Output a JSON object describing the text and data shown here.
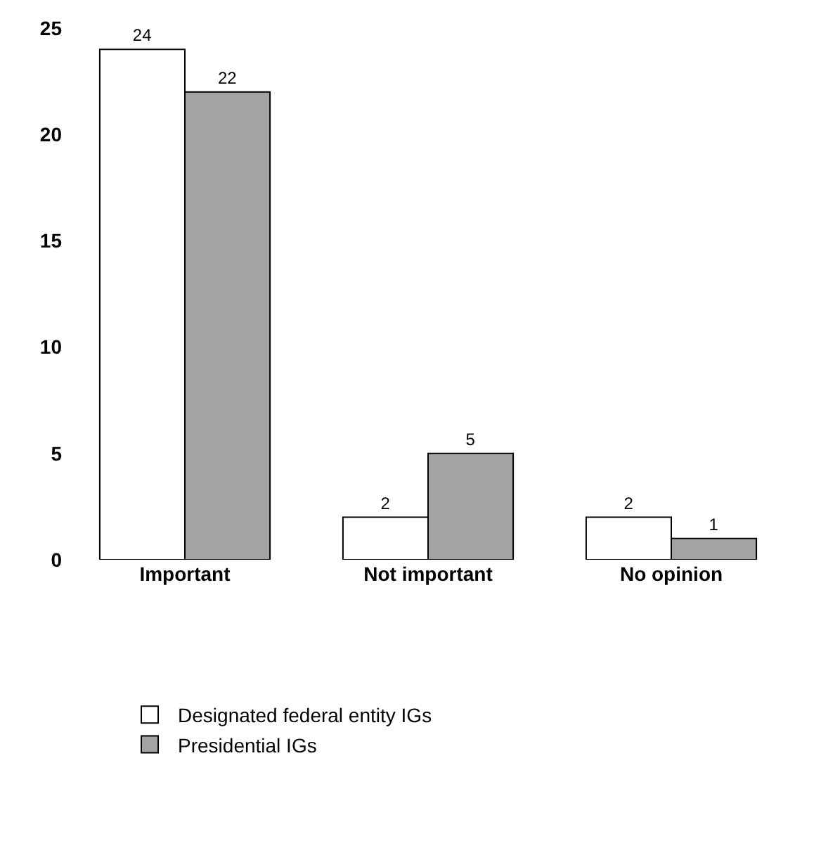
{
  "chart_data": {
    "type": "bar",
    "categories": [
      "Important",
      "Not important",
      "No opinion"
    ],
    "series": [
      {
        "name": "Designated federal entity IGs",
        "color": "#ffffff",
        "values": [
          24,
          2,
          2
        ]
      },
      {
        "name": "Presidential IGs",
        "color": "#a3a3a3",
        "values": [
          22,
          5,
          1
        ]
      }
    ],
    "ylim": [
      0,
      25
    ],
    "yticks": [
      0,
      5,
      10,
      15,
      20,
      25
    ],
    "legend": "bottom",
    "data_labels": true
  }
}
